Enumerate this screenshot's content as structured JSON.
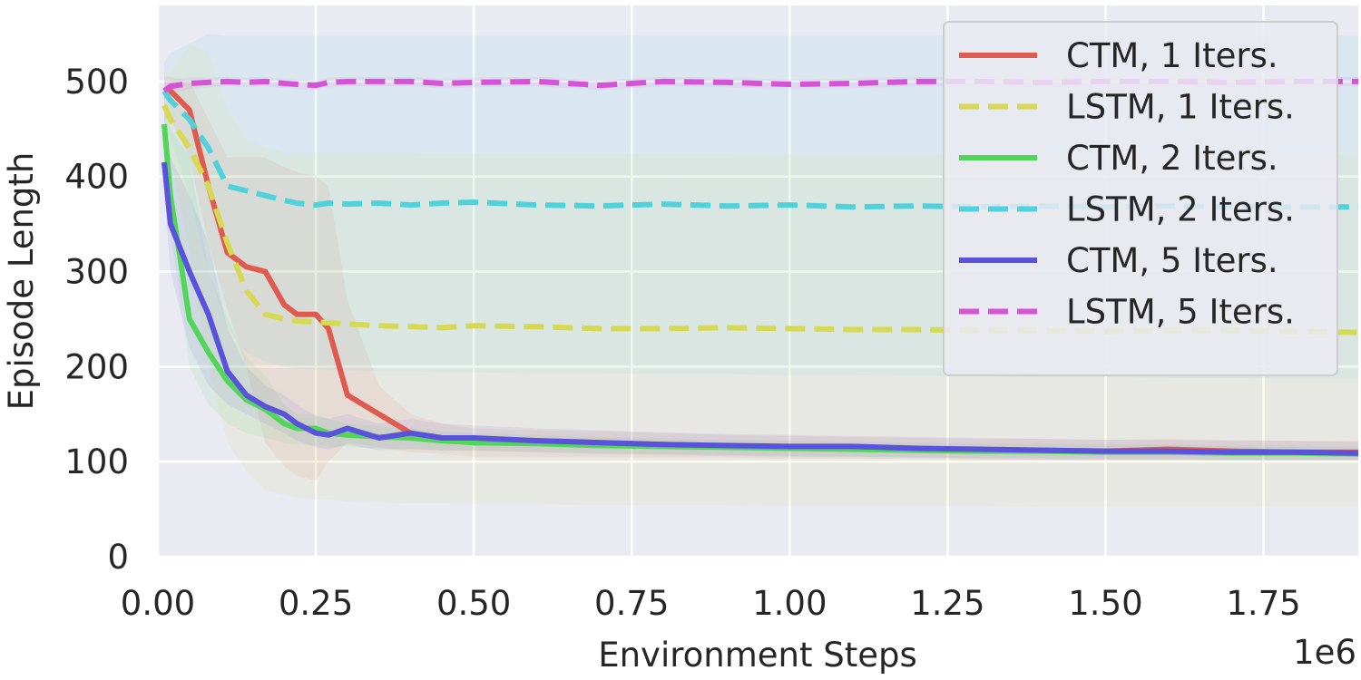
{
  "chart_data": {
    "type": "line",
    "title": "",
    "xlabel": "Environment Steps",
    "ylabel": "Episode Length",
    "x_scale_label": "1e6",
    "xlim": [
      0.0,
      1.9
    ],
    "ylim": [
      0,
      580
    ],
    "x_ticks": [
      0.0,
      0.25,
      0.5,
      0.75,
      1.0,
      1.25,
      1.5,
      1.75
    ],
    "x_tick_labels": [
      "0.00",
      "0.25",
      "0.50",
      "0.75",
      "1.00",
      "1.25",
      "1.50",
      "1.75"
    ],
    "y_ticks": [
      0,
      100,
      200,
      300,
      400,
      500
    ],
    "y_tick_labels": [
      "0",
      "100",
      "200",
      "300",
      "400",
      "500"
    ],
    "grid": true,
    "legend_position": "top-right",
    "x": [
      0.01,
      0.02,
      0.05,
      0.08,
      0.11,
      0.14,
      0.17,
      0.2,
      0.22,
      0.25,
      0.27,
      0.3,
      0.35,
      0.4,
      0.45,
      0.5,
      0.6,
      0.7,
      0.8,
      0.9,
      1.0,
      1.1,
      1.2,
      1.3,
      1.4,
      1.5,
      1.6,
      1.7,
      1.8,
      1.9
    ],
    "series": [
      {
        "name": "CTM, 1 Iters.",
        "color": "#e05a50",
        "dash": "solid",
        "values": [
          490,
          490,
          470,
          390,
          320,
          305,
          300,
          265,
          255,
          255,
          240,
          170,
          150,
          130,
          125,
          120,
          122,
          120,
          118,
          116,
          115,
          114,
          113,
          112,
          112,
          111,
          113,
          111,
          110,
          110
        ],
        "band_low": [
          460,
          460,
          420,
          330,
          260,
          200,
          120,
          95,
          85,
          80,
          100,
          120,
          115,
          110,
          108,
          105,
          105,
          105,
          104,
          104,
          103,
          103,
          103,
          102,
          102,
          102,
          102,
          102,
          102,
          102
        ],
        "band_high": [
          505,
          505,
          500,
          460,
          420,
          420,
          420,
          410,
          405,
          400,
          390,
          270,
          180,
          150,
          140,
          135,
          133,
          132,
          130,
          128,
          127,
          126,
          125,
          124,
          124,
          123,
          124,
          123,
          122,
          122
        ]
      },
      {
        "name": "LSTM, 1 Iters.",
        "color": "#d6da52",
        "dash": "dashed",
        "values": [
          475,
          460,
          430,
          390,
          330,
          280,
          255,
          250,
          248,
          247,
          246,
          245,
          243,
          242,
          241,
          243,
          242,
          240,
          240,
          241,
          240,
          239,
          239,
          238,
          238,
          237,
          238,
          238,
          237,
          236
        ],
        "band_low": [
          440,
          420,
          320,
          200,
          120,
          90,
          70,
          65,
          62,
          60,
          60,
          58,
          57,
          56,
          56,
          55,
          55,
          54,
          54,
          54,
          53,
          53,
          53,
          53,
          52,
          52,
          52,
          52,
          52,
          52
        ],
        "band_high": [
          510,
          510,
          540,
          530,
          470,
          440,
          430,
          425,
          425,
          425,
          425,
          425,
          425,
          425,
          424,
          424,
          424,
          424,
          424,
          424,
          423,
          423,
          423,
          423,
          423,
          423,
          423,
          423,
          423,
          423
        ]
      },
      {
        "name": "CTM, 2 Iters.",
        "color": "#52d65a",
        "dash": "solid",
        "values": [
          455,
          380,
          250,
          215,
          185,
          165,
          155,
          140,
          135,
          135,
          130,
          128,
          126,
          125,
          122,
          120,
          119,
          117,
          116,
          115,
          114,
          113,
          112,
          111,
          111,
          110,
          110,
          109,
          109,
          108
        ],
        "band_low": [
          430,
          340,
          200,
          160,
          140,
          130,
          125,
          120,
          118,
          117,
          116,
          115,
          114,
          113,
          112,
          111,
          110,
          109,
          108,
          107,
          106,
          105,
          105,
          104,
          104,
          103,
          103,
          102,
          102,
          102
        ],
        "band_high": [
          480,
          450,
          420,
          300,
          250,
          210,
          190,
          160,
          150,
          150,
          145,
          140,
          137,
          135,
          132,
          130,
          128,
          126,
          124,
          123,
          122,
          121,
          120,
          119,
          119,
          118,
          118,
          117,
          117,
          116
        ]
      },
      {
        "name": "LSTM, 2 Iters.",
        "color": "#4fd2dc",
        "dash": "dashed",
        "values": [
          490,
          480,
          460,
          430,
          390,
          385,
          380,
          375,
          372,
          370,
          372,
          371,
          372,
          370,
          372,
          373,
          370,
          369,
          371,
          369,
          370,
          368,
          369,
          368,
          369,
          368,
          369,
          368,
          368,
          368
        ],
        "band_low": [
          460,
          440,
          380,
          300,
          240,
          215,
          205,
          200,
          198,
          197,
          196,
          196,
          195,
          195,
          194,
          194,
          193,
          193,
          192,
          192,
          191,
          191,
          190,
          190,
          189,
          189,
          188,
          188,
          187,
          187
        ],
        "band_high": [
          520,
          530,
          540,
          550,
          548,
          548,
          548,
          548,
          548,
          548,
          548,
          548,
          548,
          548,
          548,
          548,
          548,
          548,
          548,
          548,
          548,
          548,
          548,
          548,
          548,
          548,
          548,
          548,
          548,
          548
        ]
      },
      {
        "name": "CTM, 5 Iters.",
        "color": "#5a52dc",
        "dash": "solid",
        "values": [
          415,
          350,
          300,
          255,
          195,
          170,
          158,
          150,
          140,
          130,
          128,
          135,
          125,
          130,
          125,
          125,
          122,
          120,
          118,
          117,
          116,
          116,
          114,
          113,
          112,
          111,
          111,
          110,
          110,
          109
        ],
        "band_low": [
          380,
          300,
          220,
          180,
          160,
          150,
          140,
          130,
          122,
          115,
          113,
          118,
          112,
          113,
          112,
          112,
          110,
          108,
          107,
          106,
          105,
          105,
          104,
          103,
          102,
          102,
          102,
          101,
          101,
          101
        ],
        "band_high": [
          450,
          420,
          380,
          330,
          240,
          200,
          180,
          170,
          160,
          148,
          145,
          150,
          140,
          145,
          140,
          138,
          135,
          133,
          131,
          129,
          128,
          127,
          126,
          125,
          124,
          123,
          123,
          122,
          122,
          121
        ]
      },
      {
        "name": "LSTM, 5 Iters.",
        "color": "#d652d6",
        "dash": "dashed",
        "values": [
          490,
          495,
          498,
          499,
          500,
          499,
          500,
          498,
          497,
          496,
          499,
          500,
          500,
          500,
          498,
          499,
          500,
          496,
          500,
          499,
          497,
          498,
          500,
          500,
          499,
          500,
          500,
          499,
          500,
          500
        ],
        "band_low": [
          480,
          488,
          492,
          494,
          495,
          494,
          495,
          493,
          492,
          491,
          494,
          495,
          495,
          495,
          493,
          494,
          495,
          491,
          495,
          494,
          492,
          493,
          495,
          495,
          494,
          495,
          495,
          494,
          495,
          495
        ],
        "band_high": [
          500,
          502,
          504,
          504,
          505,
          504,
          505,
          503,
          502,
          501,
          504,
          505,
          505,
          505,
          503,
          504,
          505,
          501,
          505,
          504,
          502,
          503,
          505,
          505,
          504,
          505,
          505,
          504,
          505,
          505
        ]
      }
    ]
  }
}
